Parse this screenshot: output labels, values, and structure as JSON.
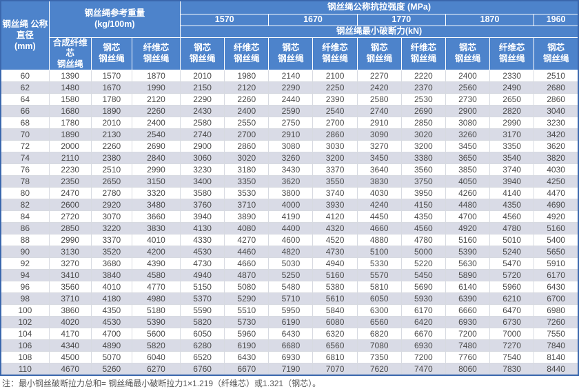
{
  "colors": {
    "header_bg": "#4d83cb",
    "outer_border": "#3a67ad",
    "stripe": "#d9dbe6",
    "body_text": "#4a4a4a"
  },
  "table": {
    "header": {
      "diameter_label": "钢丝绳 公称\n直径\n(mm)",
      "weight_label": "钢丝绳参考重量\n(kg/100m)",
      "strength_title": "钢丝绳公称抗拉强度 (MPa)",
      "strength_values": [
        "1570",
        "1670",
        "1770",
        "1870",
        "1960"
      ],
      "breaking_title": "钢丝绳最小破断力(kN)",
      "subcols": [
        "合成纤维芯\n钢丝绳",
        "钢芯\n钢丝绳",
        "纤维芯\n钢丝绳",
        "钢芯\n钢丝绳",
        "纤维芯\n钢丝绳",
        "钢芯\n钢丝绳",
        "纤维芯\n钢丝绳",
        "钢芯\n钢丝绳",
        "纤维芯\n钢丝绳",
        "钢芯\n钢丝绳",
        "纤维芯\n钢丝绳",
        "钢芯\n钢丝绳"
      ]
    },
    "rows": [
      [
        60,
        1390,
        1570,
        1870,
        2010,
        1980,
        2140,
        2100,
        2270,
        2220,
        2400,
        2330,
        2510
      ],
      [
        62,
        1480,
        1670,
        1990,
        2150,
        2120,
        2290,
        2250,
        2420,
        2370,
        2560,
        2490,
        2680
      ],
      [
        64,
        1580,
        1780,
        2120,
        2290,
        2260,
        2440,
        2390,
        2580,
        2530,
        2730,
        2650,
        2860
      ],
      [
        66,
        1680,
        1890,
        2260,
        2430,
        2400,
        2590,
        2540,
        2740,
        2690,
        2900,
        2820,
        3040
      ],
      [
        68,
        1780,
        2010,
        2400,
        2580,
        2550,
        2750,
        2700,
        2910,
        2850,
        3080,
        2990,
        3230
      ],
      [
        70,
        1890,
        2130,
        2540,
        2740,
        2700,
        2910,
        2860,
        3090,
        3020,
        3260,
        3170,
        3420
      ],
      [
        72,
        2000,
        2260,
        2690,
        2900,
        2860,
        3080,
        3030,
        3270,
        3200,
        3450,
        3350,
        3620
      ],
      [
        74,
        2110,
        2380,
        2840,
        3060,
        3020,
        3260,
        3200,
        3450,
        3380,
        3650,
        3540,
        3820
      ],
      [
        76,
        2230,
        2510,
        2990,
        3230,
        3180,
        3430,
        3370,
        3640,
        3560,
        3850,
        3740,
        4030
      ],
      [
        78,
        2350,
        2650,
        3150,
        3400,
        3350,
        3620,
        3550,
        3830,
        3750,
        4050,
        3940,
        4250
      ],
      [
        80,
        2470,
        2780,
        3320,
        3580,
        3530,
        3800,
        3740,
        4030,
        3950,
        4260,
        4140,
        4470
      ],
      [
        82,
        2600,
        2920,
        3480,
        3760,
        3710,
        4000,
        3930,
        4240,
        4150,
        4480,
        4350,
        4690
      ],
      [
        84,
        2720,
        3070,
        3660,
        3940,
        3890,
        4190,
        4120,
        4450,
        4350,
        4700,
        4560,
        4920
      ],
      [
        86,
        2850,
        3220,
        3830,
        4130,
        4080,
        4400,
        4320,
        4660,
        4560,
        4920,
        4780,
        5160
      ],
      [
        88,
        2990,
        3370,
        4010,
        4330,
        4270,
        4600,
        4520,
        4880,
        4780,
        5160,
        5010,
        5400
      ],
      [
        90,
        3130,
        3520,
        4200,
        4530,
        4460,
        4820,
        4730,
        5100,
        5000,
        5390,
        5240,
        5650
      ],
      [
        92,
        3270,
        3680,
        4390,
        4730,
        4660,
        5030,
        4940,
        5330,
        5220,
        5630,
        5470,
        5910
      ],
      [
        94,
        3410,
        3840,
        4580,
        4940,
        4870,
        5250,
        5160,
        5570,
        5450,
        5890,
        5720,
        6170
      ],
      [
        96,
        3560,
        4010,
        4770,
        5150,
        5080,
        5480,
        5380,
        5810,
        5690,
        6140,
        5960,
        6430
      ],
      [
        98,
        3710,
        4180,
        4980,
        5370,
        5290,
        5710,
        5610,
        6050,
        5930,
        6390,
        6210,
        6700
      ],
      [
        100,
        3860,
        4350,
        5180,
        5590,
        5510,
        5950,
        5840,
        6300,
        6170,
        6660,
        6470,
        6980
      ],
      [
        102,
        4020,
        4530,
        5390,
        5820,
        5730,
        6190,
        6080,
        6560,
        6420,
        6930,
        6730,
        7260
      ],
      [
        104,
        4170,
        4700,
        5600,
        6050,
        5960,
        6430,
        6320,
        6820,
        6670,
        7200,
        7000,
        7550
      ],
      [
        106,
        4340,
        4890,
        5820,
        6280,
        6190,
        6680,
        6560,
        7080,
        6930,
        7480,
        7270,
        7840
      ],
      [
        108,
        4500,
        5070,
        6040,
        6520,
        6430,
        6930,
        6810,
        7350,
        7200,
        7760,
        7540,
        8140
      ],
      [
        110,
        4670,
        5260,
        6270,
        6760,
        6670,
        7190,
        7070,
        7620,
        7470,
        8060,
        7830,
        8440
      ]
    ]
  },
  "note": "注：最小钢丝破断拉力总和= 钢丝绳最小破断拉力1×1.219（纤维芯）或1.321（钢芯）。"
}
